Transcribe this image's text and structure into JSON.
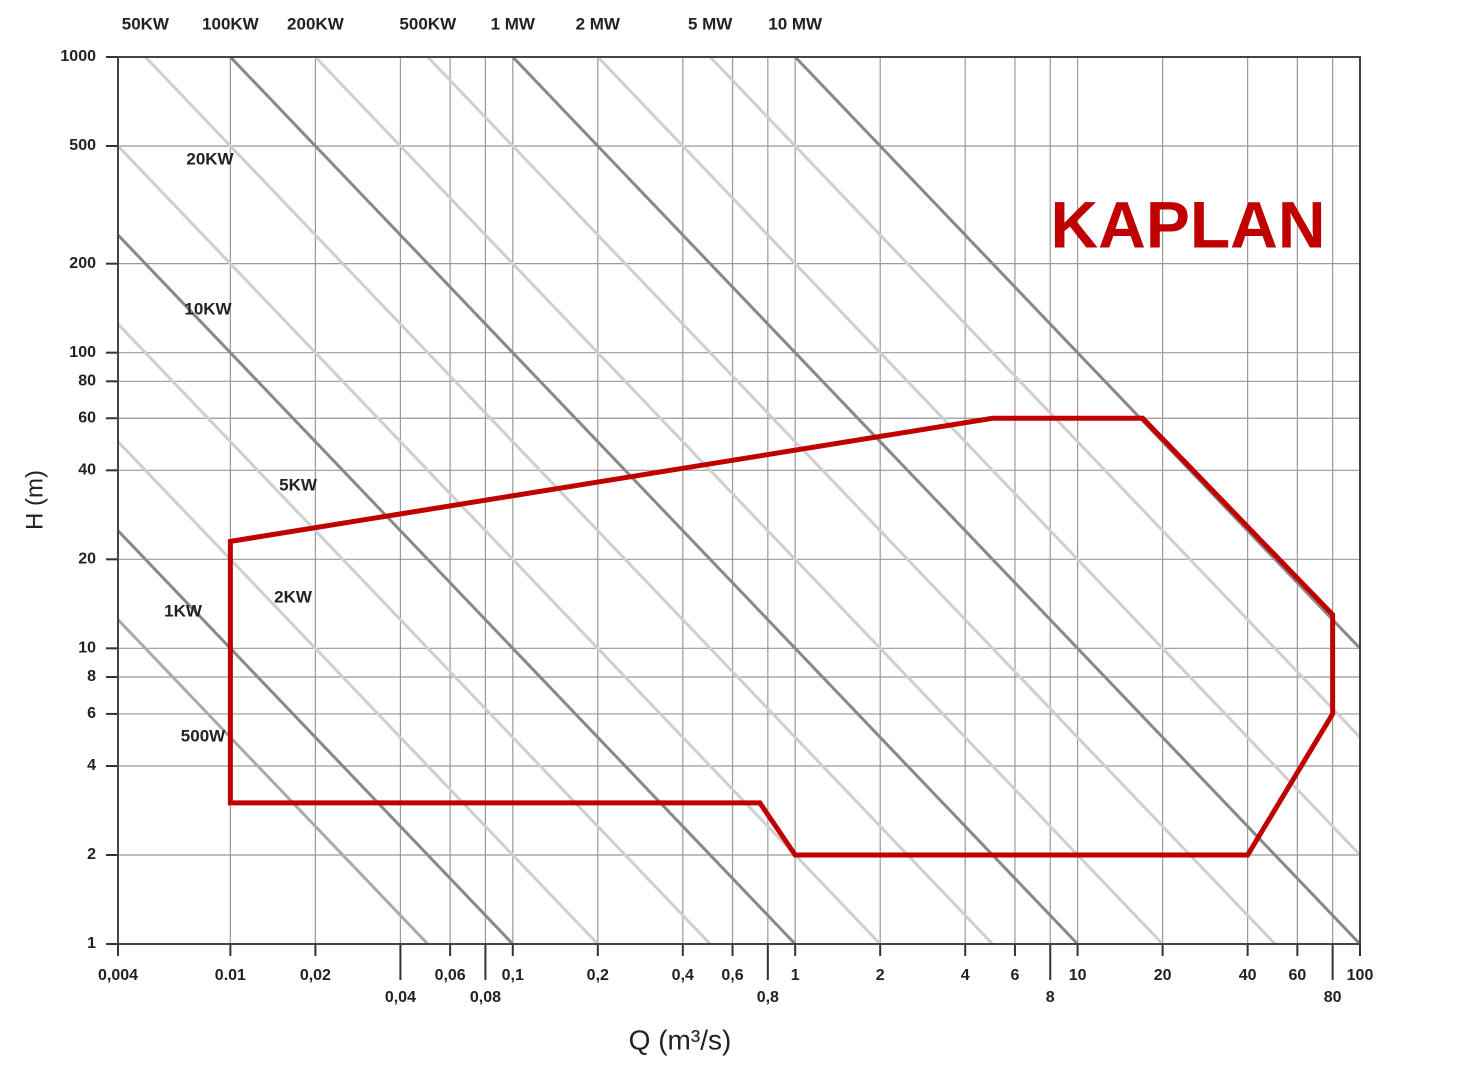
{
  "chart_data": {
    "type": "region",
    "x_label": "Q (m³/s)",
    "y_label": "H (m)",
    "log_x": true,
    "log_y": true,
    "grid": true,
    "xlim": [
      0.004,
      100
    ],
    "ylim": [
      1,
      1000
    ],
    "xticks": [
      {
        "value": 0.004,
        "label": "0,004"
      },
      0.01,
      {
        "value": 0.02,
        "label": "0,02"
      },
      {
        "value": 0.04,
        "label": "0,04"
      },
      {
        "value": 0.06,
        "label": "0,06"
      },
      {
        "value": 0.08,
        "label": "0,08"
      },
      {
        "value": 0.1,
        "label": "0,1"
      },
      {
        "value": 0.2,
        "label": "0,2"
      },
      {
        "value": 0.4,
        "label": "0,4"
      },
      {
        "value": 0.6,
        "label": "0,6"
      },
      {
        "value": 0.8,
        "label": "0,8"
      },
      1,
      2,
      4,
      6,
      8,
      10,
      20,
      40,
      60,
      80,
      100
    ],
    "yticks": [
      1,
      2,
      4,
      6,
      8,
      10,
      20,
      40,
      60,
      80,
      100,
      200,
      500,
      1000
    ],
    "power_lines": [
      {
        "label": "500W",
        "qh": 0.05,
        "color": "#aaaaaa"
      },
      {
        "label": "1KW",
        "qh": 0.1,
        "color": "#888888"
      },
      {
        "label": "2KW",
        "qh": 0.2,
        "color": "#cfcfcf"
      },
      {
        "label": "5KW",
        "qh": 0.5,
        "color": "#cfcfcf"
      },
      {
        "label": "10KW",
        "qh": 1,
        "color": "#888888"
      },
      {
        "label": "20KW",
        "qh": 2,
        "color": "#cfcfcf"
      },
      {
        "label": "50KW",
        "qh": 5,
        "color": "#cfcfcf"
      },
      {
        "label": "100KW",
        "qh": 10,
        "color": "#888888"
      },
      {
        "label": "200KW",
        "qh": 20,
        "color": "#cfcfcf"
      },
      {
        "label": "500KW",
        "qh": 50,
        "color": "#cfcfcf"
      },
      {
        "label": "1 MW",
        "qh": 100,
        "color": "#888888"
      },
      {
        "label": "2 MW",
        "qh": 200,
        "color": "#cfcfcf"
      },
      {
        "label": "5 MW",
        "qh": 500,
        "color": "#cfcfcf"
      },
      {
        "label": "10 MW",
        "qh": 1000,
        "color": "#888888"
      }
    ],
    "region": {
      "name": "KAPLAN",
      "color": "#c00000",
      "q": [
        0.01,
        5,
        17,
        80,
        80,
        40,
        1,
        0.75,
        0.01
      ],
      "h": [
        23,
        60,
        60,
        13,
        6,
        2,
        2,
        3,
        3
      ]
    }
  }
}
